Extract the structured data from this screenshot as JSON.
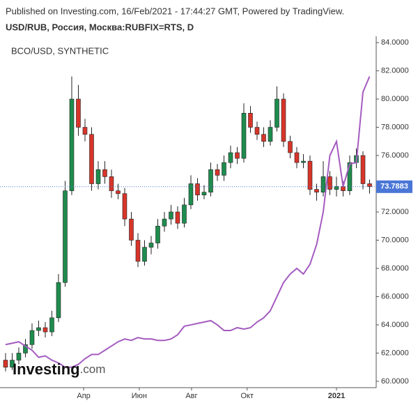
{
  "header": "Published on Investing.com, 16/Feb/2021 - 17:44:27 GMT, Powered by TradingView.",
  "logo": {
    "main": "Investing",
    "suffix": ".com"
  },
  "chart_data": {
    "type": "candlestick",
    "title": "USD/RUB, Россия, Москва:RUBFIX=RTS, D",
    "categories": [
      null,
      null,
      null,
      null,
      null,
      null,
      null,
      null,
      null,
      null,
      null,
      null,
      null,
      null,
      null,
      null,
      null,
      null,
      null,
      null,
      null,
      null,
      null,
      null,
      null,
      null,
      null,
      null,
      null,
      null,
      null,
      null,
      null,
      null,
      null,
      null,
      null,
      null,
      null,
      null,
      null,
      null,
      null,
      null,
      null,
      null,
      null,
      null,
      null,
      null,
      null,
      null,
      null,
      null,
      null,
      null
    ],
    "open": [
      61.5,
      61.0,
      61.5,
      62.0,
      62.6,
      63.6,
      63.8,
      63.5,
      64.5,
      67.0,
      73.5,
      80.0,
      78.0,
      77.5,
      74.0,
      75.0,
      74.5,
      73.5,
      73.3,
      71.5,
      70.0,
      68.5,
      69.5,
      69.8,
      71.0,
      71.5,
      72.0,
      71.2,
      72.5,
      74.0,
      73.2,
      73.4,
      75.0,
      74.6,
      75.5,
      76.2,
      75.8,
      79.0,
      78.0,
      77.5,
      77.0,
      78.0,
      80.0,
      77.0,
      76.2,
      75.5,
      75.6,
      73.6,
      73.4,
      74.5,
      73.6,
      73.8,
      73.5,
      75.5,
      76.0,
      74.0
    ],
    "high": [
      62.0,
      62.0,
      62.4,
      63.0,
      64.1,
      64.3,
      64.2,
      65.0,
      67.6,
      74.2,
      81.6,
      81.0,
      78.6,
      78.0,
      75.6,
      75.6,
      75.0,
      74.0,
      73.7,
      72.0,
      70.5,
      70.0,
      70.3,
      71.5,
      72.0,
      72.5,
      72.4,
      73.0,
      74.6,
      74.4,
      73.9,
      75.5,
      75.4,
      76.0,
      76.7,
      76.6,
      79.7,
      79.5,
      78.4,
      78.0,
      78.5,
      80.9,
      80.4,
      77.4,
      76.6,
      76.1,
      76.0,
      74.0,
      75.6,
      74.9,
      74.5,
      74.2,
      76.0,
      76.5,
      76.3,
      74.3
    ],
    "low": [
      60.7,
      60.8,
      61.2,
      61.7,
      62.3,
      63.2,
      63.1,
      63.2,
      64.2,
      66.7,
      73.2,
      77.4,
      77.0,
      73.5,
      73.6,
      74.0,
      73.0,
      72.9,
      71.0,
      69.6,
      68.1,
      68.2,
      69.0,
      69.4,
      70.6,
      71.1,
      70.8,
      70.9,
      72.2,
      72.8,
      72.9,
      73.1,
      74.2,
      74.2,
      75.1,
      75.4,
      75.5,
      77.6,
      77.1,
      76.6,
      76.7,
      77.7,
      76.6,
      75.8,
      75.1,
      75.1,
      73.2,
      72.8,
      73.1,
      73.2,
      73.1,
      73.1,
      73.2,
      75.1,
      73.6,
      73.3
    ],
    "close": [
      61.0,
      61.5,
      62.0,
      62.6,
      63.6,
      63.8,
      63.5,
      64.5,
      67.0,
      73.5,
      80.0,
      78.0,
      77.5,
      74.0,
      75.0,
      74.5,
      73.5,
      73.3,
      71.5,
      70.0,
      68.5,
      69.5,
      69.8,
      71.0,
      71.5,
      72.0,
      71.2,
      72.5,
      74.0,
      73.2,
      73.4,
      75.0,
      74.6,
      75.5,
      76.2,
      75.8,
      79.0,
      78.0,
      77.5,
      77.0,
      78.0,
      80.0,
      77.0,
      76.2,
      75.5,
      75.6,
      73.6,
      73.4,
      74.5,
      73.6,
      73.8,
      73.5,
      75.5,
      76.0,
      74.0,
      73.8
    ],
    "up_color": "#1e8c4e",
    "down_color": "#d8352a",
    "overlay": {
      "name": "BCO/USD, SYNTHETIC",
      "color": "#a45bbf",
      "values": [
        62.6,
        62.7,
        62.8,
        62.5,
        62.2,
        61.7,
        61.8,
        61.5,
        61.3,
        61.0,
        61.0,
        61.2,
        61.6,
        61.9,
        61.9,
        62.2,
        62.5,
        62.8,
        63.0,
        62.9,
        63.1,
        63.0,
        63.0,
        62.9,
        62.9,
        63.0,
        63.3,
        63.9,
        64.0,
        64.1,
        64.2,
        64.3,
        64.0,
        63.6,
        63.6,
        63.8,
        63.7,
        63.8,
        64.2,
        64.5,
        65.0,
        66.0,
        67.0,
        67.6,
        68.0,
        67.6,
        68.3,
        69.7,
        72.0,
        76.0,
        77.0,
        73.8,
        75.4,
        75.5,
        80.5,
        81.6
      ]
    },
    "last_price": 73.7883,
    "last_price_color": "#4a76d6",
    "xlim": [
      -0.84,
      56
    ],
    "xticks": [
      {
        "value": 11.8,
        "label": "Апр"
      },
      {
        "value": 20.2,
        "label": "Июн"
      },
      {
        "value": 28.1,
        "label": "Авг"
      },
      {
        "value": 36.5,
        "label": "Окт"
      },
      {
        "value": 50,
        "label": "2021",
        "bold": true
      }
    ],
    "ylim": [
      59.55,
      84.45
    ],
    "yticks": [
      {
        "value": 60,
        "label": "60.0000"
      },
      {
        "value": 62,
        "label": "62.0000"
      },
      {
        "value": 64,
        "label": "64.0000"
      },
      {
        "value": 66,
        "label": "66.0000"
      },
      {
        "value": 68,
        "label": "68.0000"
      },
      {
        "value": 70,
        "label": "70.0000"
      },
      {
        "value": 72,
        "label": "72.0000"
      },
      {
        "value": 74,
        "label": "74.0000"
      },
      {
        "value": 76,
        "label": "76.0000"
      },
      {
        "value": 78,
        "label": "78.0000"
      },
      {
        "value": 80,
        "label": "80.0000"
      },
      {
        "value": 82,
        "label": "82.0000"
      },
      {
        "value": 84,
        "label": "84.0000"
      }
    ]
  }
}
